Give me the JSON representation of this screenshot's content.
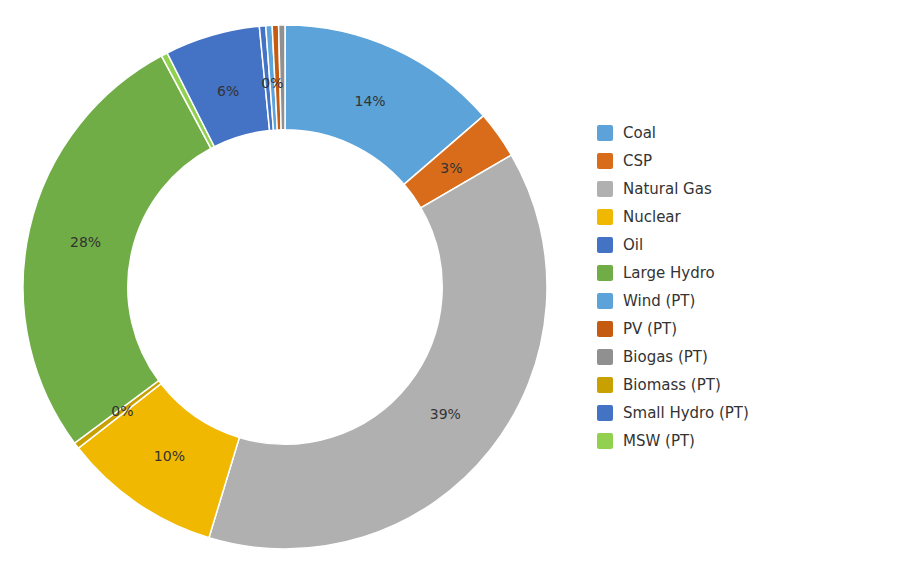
{
  "chart_data": {
    "type": "donut",
    "values": [
      14,
      3,
      39,
      10,
      0.4,
      28,
      0.4,
      6,
      0.4,
      0.4,
      0.4,
      0.4
    ],
    "value_labels": [
      "14%",
      "3%",
      "39%",
      "10%",
      "0%",
      "28%",
      null,
      "6%",
      null,
      "0%",
      null,
      null
    ],
    "colors": [
      "#5ba3d9",
      "#d96c1a",
      "#b0b0b0",
      "#f0b800",
      "#c8a000",
      "#70ad47",
      "#92d050",
      "#4472c4",
      "#4472c4",
      "#5ba3d9",
      "#c55a11",
      "#909090"
    ],
    "data_labels": true,
    "legend": "right",
    "legend_entries": [
      {
        "name": "Coal",
        "color": "#5da3d9"
      },
      {
        "name": "CSP",
        "color": "#d96c1a"
      },
      {
        "name": "Natural Gas",
        "color": "#b0b0b0"
      },
      {
        "name": "Nuclear",
        "color": "#f0b800"
      },
      {
        "name": "Oil",
        "color": "#4472c4"
      },
      {
        "name": "Large Hydro",
        "color": "#70ad47"
      },
      {
        "name": "Wind (PT)",
        "color": "#5ba3d9"
      },
      {
        "name": "PV (PT)",
        "color": "#c55a11"
      },
      {
        "name": "Biogas (PT)",
        "color": "#909090"
      },
      {
        "name": "Biomass (PT)",
        "color": "#c8a000"
      },
      {
        "name": "Small Hydro (PT)",
        "color": "#4472c4"
      },
      {
        "name": "MSW (PT)",
        "color": "#92d050"
      }
    ]
  }
}
